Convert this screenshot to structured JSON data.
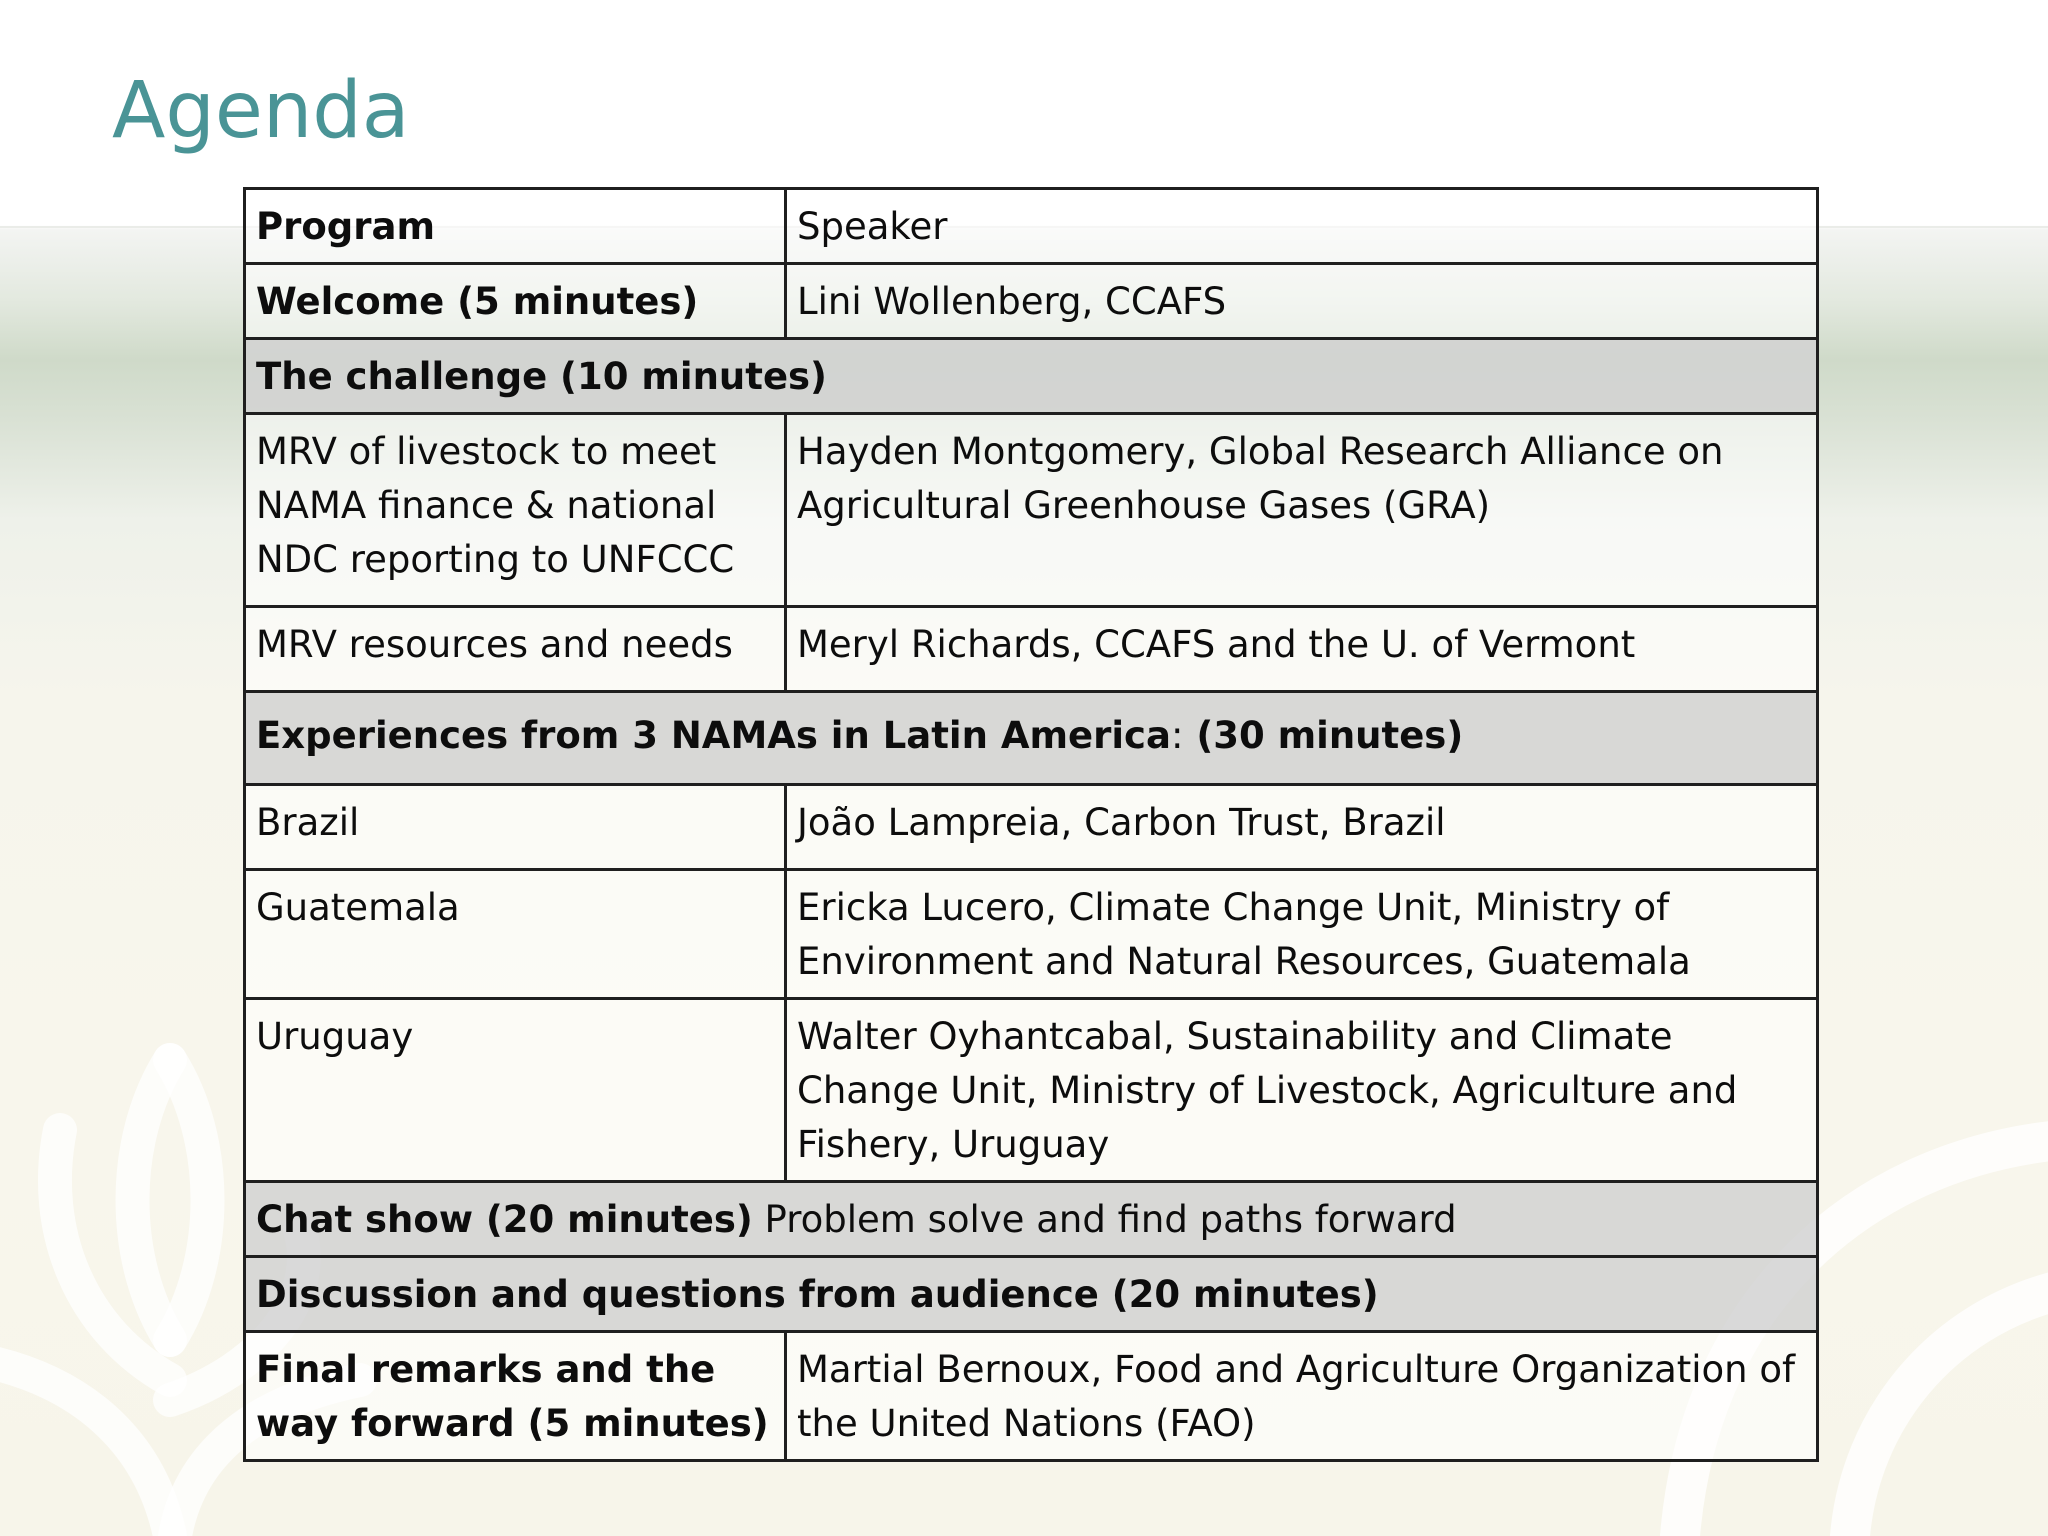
{
  "slide": {
    "title": "Agenda",
    "accent_color": "#4a9496"
  },
  "table": {
    "header": {
      "program": "Program",
      "speaker": "Speaker"
    },
    "rows": [
      {
        "program": "Welcome (5 minutes)",
        "speaker": "Lini Wollenberg, CCAFS"
      },
      {
        "section": "The challenge  (10 minutes)"
      },
      {
        "program": "MRV of livestock to meet NAMA finance & national NDC reporting to UNFCCC",
        "speaker": "Hayden Montgomery, Global Research Alliance on Agricultural Greenhouse Gases (GRA)"
      },
      {
        "program": "MRV resources and needs",
        "speaker": "Meryl Richards, CCAFS and the U. of Vermont"
      },
      {
        "section_bold": "Experiences from 3 NAMAs in Latin America",
        "section_colon": ":",
        "section_tail": " (30 minutes)"
      },
      {
        "program": "Brazil",
        "speaker": "João Lampreia, Carbon Trust,  Brazil"
      },
      {
        "program": "Guatemala",
        "speaker": "Ericka Lucero, Climate Change Unit, Ministry of Environment and Natural Resources, Guatemala"
      },
      {
        "program": "Uruguay",
        "speaker": "Walter Oyhantcabal, Sustainability and Climate Change Unit, Ministry of Livestock, Agriculture and Fishery, Uruguay"
      },
      {
        "section_bold": "Chat show (20 minutes)",
        "section_rest": " Problem solve and find paths forward"
      },
      {
        "section": "Discussion and questions from audience (20 minutes)"
      },
      {
        "program": "Final remarks and the way forward (5 minutes)",
        "speaker": "Martial Bernoux, Food and Agriculture Organization of the United Nations (FAO)"
      }
    ]
  }
}
